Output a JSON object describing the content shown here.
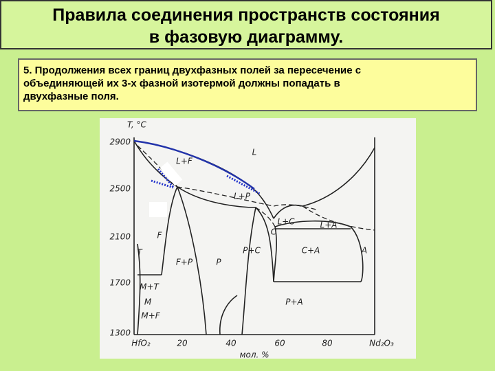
{
  "header": {
    "title_lines": [
      "Правила соединения пространств состояния",
      "в фазовую диаграмму."
    ]
  },
  "rule": {
    "lines": [
      "5. Продолжения всех границ  двухфазных полей за пересечение с",
      "объединяющей их 3-х фазной изотермой должны попадать в",
      "двухфазные поля."
    ]
  },
  "diagram": {
    "y_axis_label": "T, °C",
    "y_ticks": [
      "2900",
      "2500",
      "2100",
      "1700",
      "1300"
    ],
    "x_ticks": [
      "HfO₂",
      "20",
      "40",
      "60",
      "80",
      "Nd₂O₃"
    ],
    "x_axis_label": "мол. %",
    "regions": [
      "L",
      "L+F",
      "L+P",
      "L+C",
      "L+A",
      "C",
      "P+C",
      "C+A",
      "A",
      "F",
      "F+P",
      "P",
      "T",
      "M+T",
      "M",
      "M+F",
      "P+A"
    ]
  }
}
